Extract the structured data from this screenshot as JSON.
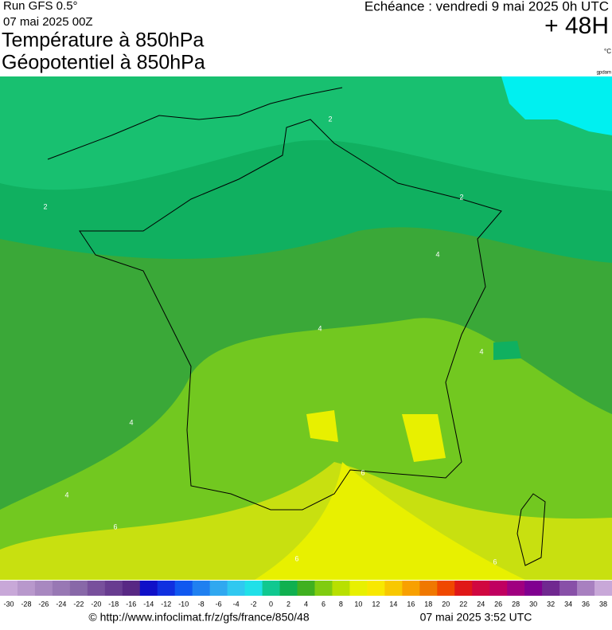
{
  "header": {
    "run": "Run GFS 0.5°",
    "run_date": "07 mai 2025 00Z",
    "title_1": "Température à 850hPa",
    "title_2": "Géopotentiel à 850hPa",
    "valid": "Echéance : vendredi 9 mai 2025 0h UTC",
    "lead": "+ 48H",
    "unit": "°C",
    "credit": "gpdam"
  },
  "map": {
    "contour_labels": [
      2,
      2,
      2,
      4,
      4,
      4,
      4,
      4,
      6,
      6,
      6,
      6
    ]
  },
  "colorbar": {
    "ticks": [
      -30,
      -28,
      -26,
      -24,
      -22,
      -20,
      -18,
      -16,
      -14,
      -12,
      -10,
      -8,
      -6,
      -4,
      -2,
      0,
      2,
      4,
      6,
      8,
      10,
      12,
      14,
      16,
      18,
      20,
      22,
      24,
      26,
      28,
      30,
      32,
      34,
      36,
      38
    ],
    "colors": [
      "#c8a8d8",
      "#b898cc",
      "#a888c0",
      "#9878b4",
      "#8868a8",
      "#78509c",
      "#683c90",
      "#582884",
      "#1010c8",
      "#1030e0",
      "#1058f0",
      "#2080f0",
      "#30a8f0",
      "#30c8f0",
      "#20e0e8",
      "#10c890",
      "#10b050",
      "#40b020",
      "#80cc10",
      "#b8e000",
      "#e8f000",
      "#f8e800",
      "#f8c800",
      "#f8a000",
      "#f07800",
      "#f04800",
      "#e01818",
      "#d00840",
      "#c00060",
      "#a00080",
      "#800090",
      "#702890",
      "#8850a8",
      "#a880c0",
      "#c8a8d8"
    ]
  },
  "footer": {
    "url": "© http://www.infoclimat.fr/z/gfs/france/850/48",
    "generated": "07 mai 2025  3:52 UTC"
  }
}
